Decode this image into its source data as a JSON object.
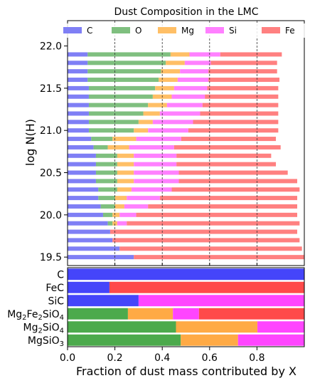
{
  "chart_data": [
    {
      "type": "bar",
      "orientation": "horizontal",
      "stacked": true,
      "title": "Dust Composition in the LMC",
      "ylabel": "log N(H)",
      "xlim": [
        0,
        1
      ],
      "ylim": [
        19.4,
        22.3
      ],
      "yticks": [
        "19.5",
        "20.0",
        "20.5",
        "21.0",
        "21.5",
        "22.0"
      ],
      "ytick_values": [
        19.5,
        20.0,
        20.5,
        21.0,
        21.5,
        22.0
      ],
      "grid": "vertical dashed lines at x = 0.2, 0.4, 0.6, 0.8",
      "legend_position": "top, horizontal",
      "colors": {
        "C": "#7f7ff5",
        "O": "#7fbf7f",
        "Mg": "#ffbf66",
        "Si": "#ff80ff",
        "Fe": "#ff8080"
      },
      "y": [
        19.5,
        19.6,
        19.7,
        19.8,
        19.9,
        20.0,
        20.1,
        20.2,
        20.3,
        20.4,
        20.5,
        20.6,
        20.7,
        20.8,
        20.9,
        21.0,
        21.1,
        21.2,
        21.3,
        21.4,
        21.5,
        21.6,
        21.7,
        21.8,
        21.9
      ],
      "series": [
        {
          "name": "C",
          "values": [
            0.28,
            0.22,
            0.19,
            0.18,
            0.17,
            0.15,
            0.14,
            0.13,
            0.13,
            0.12,
            0.12,
            0.12,
            0.12,
            0.11,
            0.1,
            0.09,
            0.09,
            0.09,
            0.09,
            0.09,
            0.09,
            0.085,
            0.085,
            0.085,
            0.085
          ]
        },
        {
          "name": "O",
          "values": [
            0.0,
            0.0,
            0.0,
            0.0,
            0.02,
            0.04,
            0.06,
            0.07,
            0.08,
            0.09,
            0.09,
            0.09,
            0.09,
            0.06,
            0.09,
            0.19,
            0.21,
            0.23,
            0.25,
            0.27,
            0.28,
            0.3,
            0.31,
            0.33,
            0.35
          ]
        },
        {
          "name": "Mg",
          "values": [
            0.0,
            0.0,
            0.0,
            0.0,
            0.02,
            0.03,
            0.04,
            0.05,
            0.06,
            0.07,
            0.07,
            0.07,
            0.07,
            0.09,
            0.1,
            0.06,
            0.06,
            0.07,
            0.08,
            0.08,
            0.08,
            0.08,
            0.08,
            0.08,
            0.08
          ]
        },
        {
          "name": "Si",
          "values": [
            0.0,
            0.0,
            0.0,
            0.0,
            0.04,
            0.07,
            0.1,
            0.14,
            0.17,
            0.19,
            0.19,
            0.18,
            0.18,
            0.19,
            0.19,
            0.17,
            0.17,
            0.17,
            0.15,
            0.14,
            0.14,
            0.13,
            0.12,
            0.11,
            0.13
          ]
        },
        {
          "name": "Fe",
          "values": [
            0.72,
            0.77,
            0.79,
            0.79,
            0.73,
            0.68,
            0.63,
            0.58,
            0.54,
            0.5,
            0.46,
            0.42,
            0.4,
            0.45,
            0.4,
            0.38,
            0.36,
            0.33,
            0.32,
            0.31,
            0.3,
            0.3,
            0.29,
            0.28,
            0.26
          ]
        }
      ]
    },
    {
      "type": "bar",
      "orientation": "horizontal",
      "stacked": true,
      "xlabel": "Fraction of dust mass contributed by X",
      "xlim": [
        0,
        1
      ],
      "xticks": [
        "0.0",
        "0.2",
        "0.4",
        "0.6",
        "0.8"
      ],
      "xtick_values": [
        0.0,
        0.2,
        0.4,
        0.6,
        0.8
      ],
      "colors": {
        "C": "#4545fa",
        "O": "#4caa4c",
        "Mg": "#ffaa45",
        "Si": "#ff45ff",
        "Fe": "#ff4a4a"
      },
      "categories": [
        "C",
        "FeC",
        "SiC",
        "Mg₂Fe₂SiO₄",
        "Mg₂SiO₄",
        "MgSiO₃"
      ],
      "category_labels": [
        {
          "base": "C",
          "sub": ""
        },
        {
          "base": "FeC",
          "sub": ""
        },
        {
          "base": "SiC",
          "sub": ""
        },
        {
          "parts": [
            [
              "Mg",
              ""
            ],
            [
              "2",
              "sub"
            ],
            [
              "Fe",
              ""
            ],
            [
              "2",
              "sub"
            ],
            [
              "SiO",
              ""
            ],
            [
              "4",
              "sub"
            ]
          ]
        },
        {
          "parts": [
            [
              "Mg",
              ""
            ],
            [
              "2",
              "sub"
            ],
            [
              "SiO",
              ""
            ],
            [
              "4",
              "sub"
            ]
          ]
        },
        {
          "parts": [
            [
              "MgSiO",
              ""
            ],
            [
              "3",
              "sub"
            ]
          ]
        }
      ],
      "series": [
        {
          "name": "C",
          "values": [
            1.0,
            0.177,
            0.3,
            0.0,
            0.0,
            0.0
          ]
        },
        {
          "name": "O",
          "values": [
            0.0,
            0.0,
            0.0,
            0.255,
            0.458,
            0.478
          ]
        },
        {
          "name": "Mg",
          "values": [
            0.0,
            0.0,
            0.0,
            0.19,
            0.344,
            0.242
          ]
        },
        {
          "name": "Si",
          "values": [
            0.0,
            0.0,
            0.7,
            0.11,
            0.198,
            0.28
          ]
        },
        {
          "name": "Fe",
          "values": [
            0.0,
            0.823,
            0.0,
            0.445,
            0.0,
            0.0
          ]
        }
      ]
    }
  ]
}
